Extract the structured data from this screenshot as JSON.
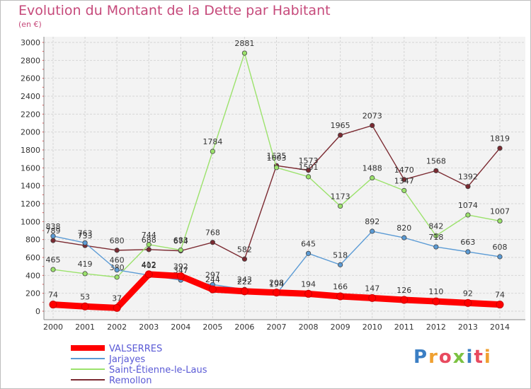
{
  "page": {
    "title": "Evolution du Montant de la Dette par Habitant",
    "subtitle": "(en €)",
    "logo": "Proxiti"
  },
  "chart_data": {
    "type": "line",
    "title": "Evolution du Montant de la Dette par Habitant",
    "subtitle": "(en €)",
    "xlabel": "",
    "ylabel": "",
    "ylim": [
      0,
      3000
    ],
    "yticks": [
      0,
      200,
      400,
      600,
      800,
      1000,
      1200,
      1400,
      1600,
      1800,
      2000,
      2200,
      2400,
      2600,
      2800,
      3000
    ],
    "grid": true,
    "legend_position": "bottom-left",
    "x": [
      "2000",
      "2001",
      "2002",
      "2003",
      "2004",
      "2005",
      "2006",
      "2007",
      "2008",
      "2009",
      "2010",
      "2011",
      "2012",
      "2013",
      "2014"
    ],
    "series": [
      {
        "name": "Remollon",
        "color": "#7b2a31",
        "values": [
          789,
          733,
          680,
          688,
          674,
          768,
          582,
          1625,
          1573,
          1965,
          2073,
          1470,
          1568,
          1392,
          1819
        ]
      },
      {
        "name": "Saint-Étienne-le-Laus",
        "color": "#9be26b",
        "values": [
          465,
          419,
          380,
          744,
          683,
          1784,
          2881,
          1603,
          1501,
          1173,
          1488,
          1347,
          842,
          1074,
          1007
        ]
      },
      {
        "name": "Jarjayes",
        "color": "#5b9bd5",
        "values": [
          838,
          763,
          460,
          402,
          347,
          297,
          243,
          194,
          645,
          518,
          892,
          820,
          718,
          663,
          608
        ]
      },
      {
        "name": "VALSERRES",
        "color": "#ff0000",
        "values": [
          74,
          53,
          37,
          412,
          392,
          244,
          222,
          208,
          194,
          166,
          147,
          126,
          110,
          92,
          74
        ]
      }
    ]
  }
}
